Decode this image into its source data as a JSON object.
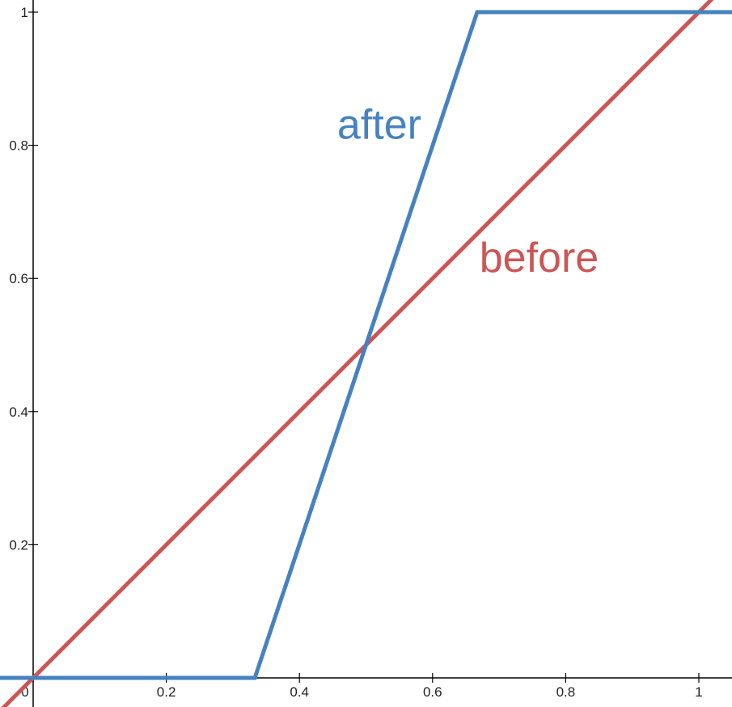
{
  "chart_data": {
    "type": "line",
    "title": "",
    "xlabel": "",
    "ylabel": "",
    "xlim": [
      -0.05,
      1.05
    ],
    "ylim": [
      -0.04,
      1.01
    ],
    "grid": false,
    "x_ticks": [
      {
        "value": 0,
        "label": "0"
      },
      {
        "value": 0.2,
        "label": "0.2"
      },
      {
        "value": 0.4,
        "label": "0.4"
      },
      {
        "value": 0.6,
        "label": "0.6"
      },
      {
        "value": 0.8,
        "label": "0.8"
      },
      {
        "value": 1,
        "label": "1"
      }
    ],
    "y_ticks": [
      {
        "value": 0.2,
        "label": "0.2"
      },
      {
        "value": 0.4,
        "label": "0.4"
      },
      {
        "value": 0.6,
        "label": "0.6"
      },
      {
        "value": 0.8,
        "label": "0.8"
      },
      {
        "value": 1,
        "label": "1"
      }
    ],
    "series": [
      {
        "name": "before",
        "color": "#cd5555",
        "x": [
          -0.05,
          1.05
        ],
        "y": [
          -0.05,
          1.05
        ]
      },
      {
        "name": "after",
        "color": "#4682bf",
        "x": [
          -0.05,
          0.333,
          0.667,
          1.05
        ],
        "y": [
          0,
          0,
          1,
          1
        ]
      }
    ],
    "annotations": [
      {
        "text": "after",
        "series": "after",
        "x": 0.52,
        "y": 0.81
      },
      {
        "text": "before",
        "series": "before",
        "x": 0.76,
        "y": 0.61
      }
    ]
  }
}
